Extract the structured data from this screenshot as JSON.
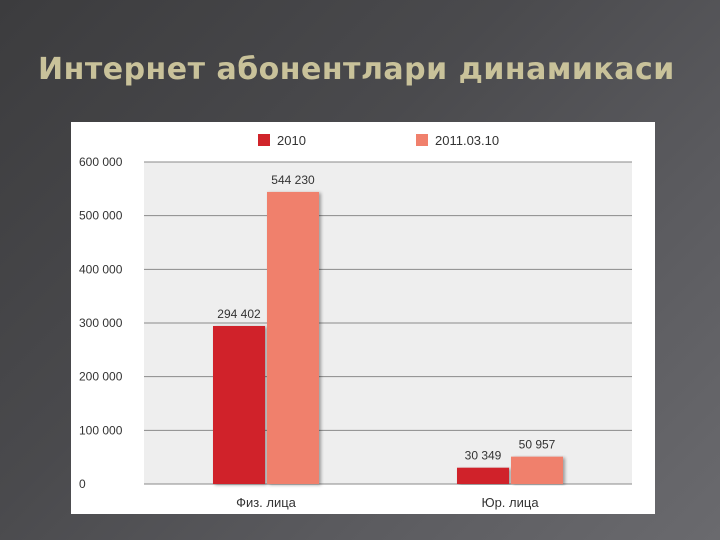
{
  "slide": {
    "title": "Интернет абонентлари динамикаси"
  },
  "chart_data": {
    "type": "bar",
    "categories": [
      "Физ. лица",
      "Юр. лица"
    ],
    "series": [
      {
        "name": "2010",
        "values": [
          294402,
          30349
        ],
        "labels": [
          "294 402",
          "30 349"
        ]
      },
      {
        "name": "2011.03.10",
        "values": [
          544230,
          50957
        ],
        "labels": [
          "544 230",
          "50 957"
        ]
      }
    ],
    "ylim": [
      0,
      600000
    ],
    "yticks": [
      0,
      100000,
      200000,
      300000,
      400000,
      500000,
      600000
    ],
    "ytick_labels": [
      "0",
      "100 000",
      "200 000",
      "300 000",
      "400 000",
      "500 000",
      "600 000"
    ],
    "grid": true,
    "legend": "top",
    "colors": [
      "#d0242a",
      "#f0806c"
    ],
    "plot_bg": "#eeeeee"
  }
}
